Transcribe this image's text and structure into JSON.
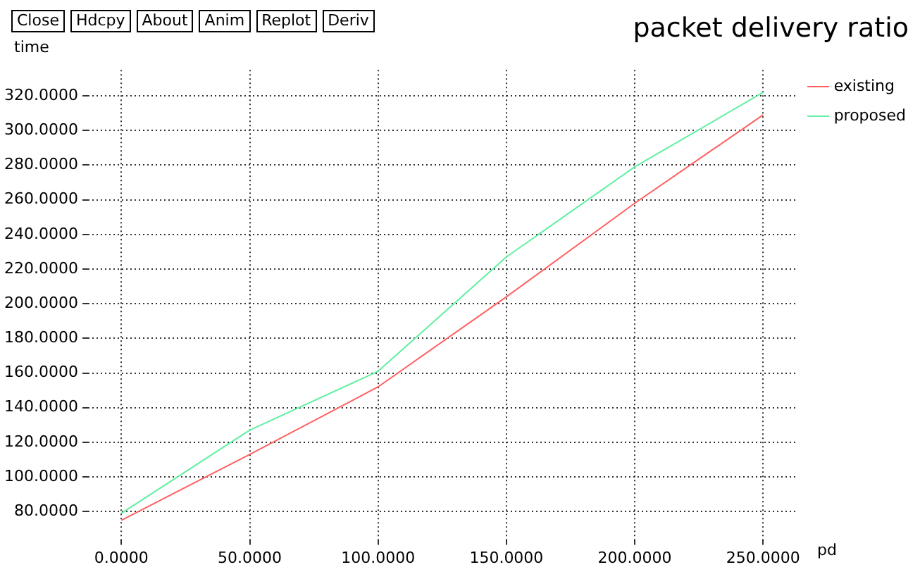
{
  "chart_data": {
    "type": "line",
    "title": "packet delivery ratio",
    "xlabel": "pd",
    "ylabel": "time",
    "annotations": [
      "Close",
      "Hdcpy",
      "About",
      "Anim",
      "Replot",
      "Deriv"
    ],
    "x": [
      0,
      50,
      100,
      150,
      200,
      250
    ],
    "series": [
      {
        "name": "existing",
        "color": "#ff6060",
        "values": [
          75,
          113,
          152,
          204,
          258,
          309
        ]
      },
      {
        "name": "proposed",
        "color": "#60f0a0",
        "values": [
          79,
          127,
          161,
          227,
          279,
          322
        ]
      }
    ],
    "xlim": [
      -13,
      263
    ],
    "ylim": [
      64,
      335
    ],
    "xticks": [
      {
        "value": 0,
        "label": "0.0000"
      },
      {
        "value": 50,
        "label": "50.0000"
      },
      {
        "value": 100,
        "label": "100.0000"
      },
      {
        "value": 150,
        "label": "150.0000"
      },
      {
        "value": 200,
        "label": "200.0000"
      },
      {
        "value": 250,
        "label": "250.0000"
      }
    ],
    "yticks": [
      {
        "value": 80,
        "label": "80.0000"
      },
      {
        "value": 100,
        "label": "100.0000"
      },
      {
        "value": 120,
        "label": "120.0000"
      },
      {
        "value": 140,
        "label": "140.0000"
      },
      {
        "value": 160,
        "label": "160.0000"
      },
      {
        "value": 180,
        "label": "180.0000"
      },
      {
        "value": 200,
        "label": "200.0000"
      },
      {
        "value": 220,
        "label": "220.0000"
      },
      {
        "value": 240,
        "label": "240.0000"
      },
      {
        "value": 260,
        "label": "260.0000"
      },
      {
        "value": 280,
        "label": "280.0000"
      },
      {
        "value": 300,
        "label": "300.0000"
      },
      {
        "value": 320,
        "label": "320.0000"
      }
    ],
    "grid": true,
    "legend": "top right",
    "marker": "none",
    "line_style": "solid"
  }
}
